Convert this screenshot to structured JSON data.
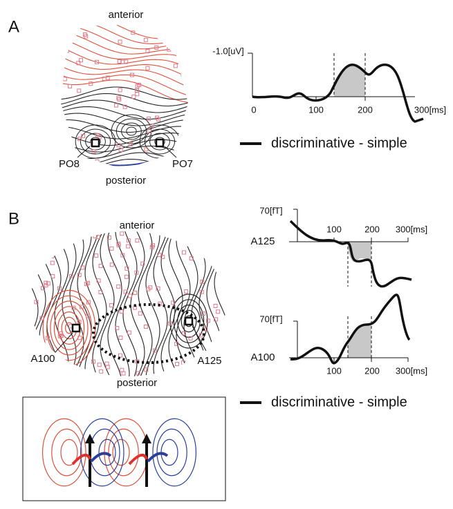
{
  "panel_a": {
    "label": "A",
    "map": {
      "top": "anterior",
      "bottom": "posterior",
      "electrodes": [
        "PO8",
        "PO7"
      ]
    },
    "plot": {
      "y_unit": "-1.0[uV]",
      "x_ticks": [
        "0",
        "100",
        "200",
        "300[ms]"
      ]
    },
    "legend": "discriminative - simple"
  },
  "panel_b": {
    "label": "B",
    "map": {
      "top": "anterior",
      "bottom": "posterior",
      "electrodes": [
        "A100",
        "A125"
      ]
    },
    "plots": [
      {
        "channel": "A125",
        "y_unit": "70[fT]",
        "x_ticks": [
          "100",
          "200",
          "300[ms]"
        ]
      },
      {
        "channel": "A100",
        "y_unit": "70[fT]",
        "x_ticks": [
          "100",
          "200",
          "300[ms]"
        ]
      }
    ],
    "legend": "discriminative - simple"
  }
}
